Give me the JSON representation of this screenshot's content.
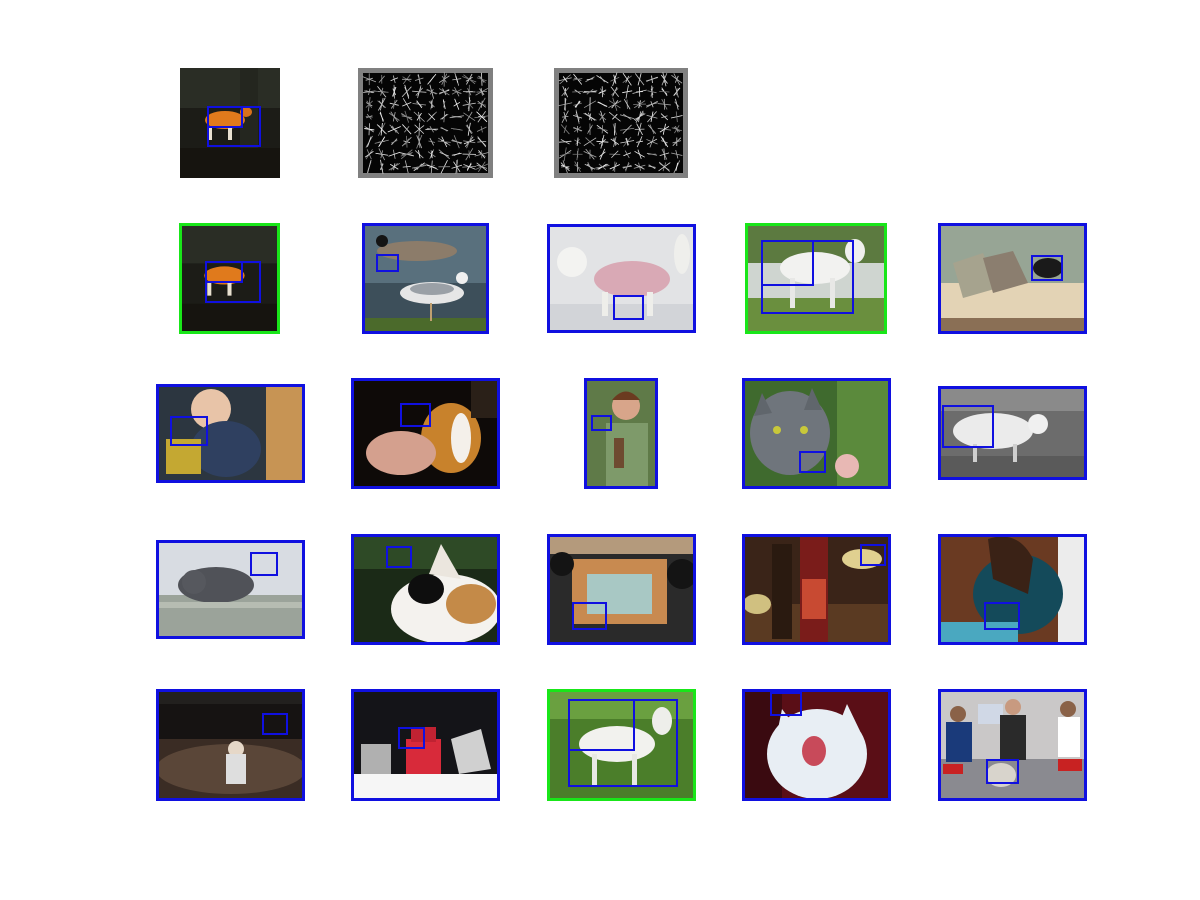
{
  "figure": {
    "colors": {
      "false_positive_frame": "#1010e0",
      "true_positive_frame": "#19e619",
      "detection_box": "#1010e0",
      "hog_background": "#808080"
    },
    "query": {
      "scene": "horse-dark",
      "hog_panels": 2
    },
    "rows": [
      [
        {
          "scene": "horse-dark",
          "label": "correct"
        },
        {
          "scene": "gull",
          "label": "incorrect"
        },
        {
          "scene": "dog-sweater",
          "label": "incorrect"
        },
        {
          "scene": "white-horse",
          "label": "correct"
        },
        {
          "scene": "sofa",
          "label": "incorrect"
        }
      ],
      [
        {
          "scene": "baby",
          "label": "incorrect"
        },
        {
          "scene": "puppy",
          "label": "incorrect"
        },
        {
          "scene": "woman-bird",
          "label": "incorrect"
        },
        {
          "scene": "grey-cat",
          "label": "incorrect"
        },
        {
          "scene": "sheep",
          "label": "incorrect"
        }
      ],
      [
        {
          "scene": "cat-ledge",
          "label": "incorrect"
        },
        {
          "scene": "calico",
          "label": "incorrect"
        },
        {
          "scene": "bike-couch",
          "label": "incorrect"
        },
        {
          "scene": "bottles",
          "label": "incorrect"
        },
        {
          "scene": "woman-sewing",
          "label": "incorrect"
        }
      ],
      [
        {
          "scene": "crowd-night",
          "label": "incorrect"
        },
        {
          "scene": "stage-chair",
          "label": "incorrect"
        },
        {
          "scene": "white-horse-2",
          "label": "correct"
        },
        {
          "scene": "kitten",
          "label": "incorrect"
        },
        {
          "scene": "office",
          "label": "incorrect"
        }
      ]
    ]
  }
}
